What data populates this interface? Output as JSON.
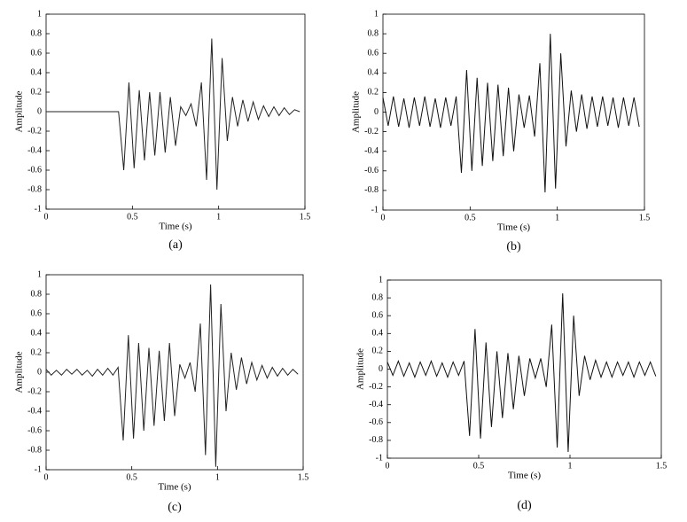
{
  "chart_data": [
    {
      "type": "line",
      "xlabel": "Time (s)",
      "ylabel": "Amplitude",
      "caption": "(a)",
      "color": "#222222",
      "xlim": [
        0,
        1.5
      ],
      "ylim": [
        -1,
        1
      ],
      "xticks": [
        0,
        0.5,
        1,
        1.5
      ],
      "yticks": [
        -1,
        -0.8,
        -0.6,
        -0.4,
        -0.2,
        0,
        0.2,
        0.4,
        0.6,
        0.8,
        1
      ],
      "x": [
        0,
        0.03,
        0.06,
        0.09,
        0.12,
        0.15,
        0.18,
        0.21,
        0.24,
        0.27,
        0.3,
        0.33,
        0.36,
        0.39,
        0.42,
        0.45,
        0.48,
        0.51,
        0.54,
        0.57,
        0.6,
        0.63,
        0.66,
        0.69,
        0.72,
        0.75,
        0.78,
        0.81,
        0.84,
        0.87,
        0.9,
        0.93,
        0.96,
        0.99,
        1.02,
        1.05,
        1.08,
        1.11,
        1.14,
        1.17,
        1.2,
        1.23,
        1.26,
        1.29,
        1.32,
        1.35,
        1.38,
        1.41,
        1.44,
        1.47
      ],
      "values": [
        0,
        0,
        0,
        0,
        0,
        0,
        0,
        0,
        0,
        0,
        0,
        0,
        0,
        0,
        0,
        -0.6,
        0.3,
        -0.58,
        0.22,
        -0.5,
        0.2,
        -0.45,
        0.2,
        -0.42,
        0.15,
        -0.35,
        0.05,
        -0.04,
        0.08,
        -0.15,
        0.3,
        -0.7,
        0.75,
        -0.8,
        0.55,
        -0.3,
        0.15,
        -0.15,
        0.12,
        -0.1,
        0.1,
        -0.08,
        0.06,
        -0.05,
        0.05,
        -0.04,
        0.04,
        -0.03,
        0.02,
        0
      ]
    },
    {
      "type": "line",
      "xlabel": "Time (s)",
      "ylabel": "Amplitude",
      "caption": "(b)",
      "color": "#111111",
      "xlim": [
        0,
        1.5
      ],
      "ylim": [
        -1,
        1
      ],
      "xticks": [
        0,
        0.5,
        1,
        1.5
      ],
      "yticks": [
        -1,
        -0.8,
        -0.6,
        -0.4,
        -0.2,
        0,
        0.2,
        0.4,
        0.6,
        0.8,
        1
      ],
      "x": [
        0,
        0.03,
        0.06,
        0.09,
        0.12,
        0.15,
        0.18,
        0.21,
        0.24,
        0.27,
        0.3,
        0.33,
        0.36,
        0.39,
        0.42,
        0.45,
        0.48,
        0.51,
        0.54,
        0.57,
        0.6,
        0.63,
        0.66,
        0.69,
        0.72,
        0.75,
        0.78,
        0.81,
        0.84,
        0.87,
        0.9,
        0.93,
        0.96,
        0.99,
        1.02,
        1.05,
        1.08,
        1.11,
        1.14,
        1.17,
        1.2,
        1.23,
        1.26,
        1.29,
        1.32,
        1.35,
        1.38,
        1.41,
        1.44,
        1.47
      ],
      "values": [
        0.15,
        -0.14,
        0.16,
        -0.15,
        0.14,
        -0.16,
        0.15,
        -0.14,
        0.16,
        -0.15,
        0.14,
        -0.16,
        0.15,
        -0.14,
        0.16,
        -0.62,
        0.43,
        -0.6,
        0.35,
        -0.55,
        0.3,
        -0.5,
        0.28,
        -0.45,
        0.25,
        -0.4,
        0.18,
        -0.16,
        0.17,
        -0.25,
        0.5,
        -0.82,
        0.8,
        -0.78,
        0.6,
        -0.35,
        0.22,
        -0.2,
        0.18,
        -0.17,
        0.16,
        -0.15,
        0.16,
        -0.14,
        0.15,
        -0.16,
        0.15,
        -0.14,
        0.15,
        -0.15
      ]
    },
    {
      "type": "line",
      "xlabel": "Time (s)",
      "ylabel": "Amplitude",
      "caption": "(c)",
      "color": "#222222",
      "xlim": [
        0,
        1.5
      ],
      "ylim": [
        -1,
        1
      ],
      "xticks": [
        0,
        0.5,
        1,
        1.5
      ],
      "yticks": [
        -1,
        -0.8,
        -0.6,
        -0.4,
        -0.2,
        0,
        0.2,
        0.4,
        0.6,
        0.8,
        1
      ],
      "x": [
        0,
        0.03,
        0.06,
        0.09,
        0.12,
        0.15,
        0.18,
        0.21,
        0.24,
        0.27,
        0.3,
        0.33,
        0.36,
        0.39,
        0.42,
        0.45,
        0.48,
        0.51,
        0.54,
        0.57,
        0.6,
        0.63,
        0.66,
        0.69,
        0.72,
        0.75,
        0.78,
        0.81,
        0.84,
        0.87,
        0.9,
        0.93,
        0.96,
        0.99,
        1.02,
        1.05,
        1.08,
        1.11,
        1.14,
        1.17,
        1.2,
        1.23,
        1.26,
        1.29,
        1.32,
        1.35,
        1.38,
        1.41,
        1.44,
        1.47
      ],
      "values": [
        0.03,
        -0.03,
        0.02,
        -0.03,
        0.03,
        -0.02,
        0.03,
        -0.03,
        0.02,
        -0.04,
        0.03,
        -0.03,
        0.04,
        -0.03,
        0.05,
        -0.7,
        0.38,
        -0.68,
        0.3,
        -0.6,
        0.25,
        -0.55,
        0.22,
        -0.5,
        0.3,
        -0.45,
        0.08,
        -0.06,
        0.1,
        -0.2,
        0.5,
        -0.85,
        0.9,
        -0.97,
        0.7,
        -0.4,
        0.2,
        -0.18,
        0.15,
        -0.12,
        0.1,
        -0.08,
        0.07,
        -0.06,
        0.05,
        -0.04,
        0.04,
        -0.03,
        0.03,
        -0.02
      ]
    },
    {
      "type": "line",
      "xlabel": "Time (s)",
      "ylabel": "Amplitude",
      "caption": "(d)",
      "color": "#111111",
      "xlim": [
        0,
        1.5
      ],
      "ylim": [
        -1,
        1
      ],
      "xticks": [
        0,
        0.5,
        1,
        1.5
      ],
      "yticks": [
        -1,
        -0.8,
        -0.6,
        -0.4,
        -0.2,
        0,
        0.2,
        0.4,
        0.6,
        0.8,
        1
      ],
      "x": [
        0,
        0.03,
        0.06,
        0.09,
        0.12,
        0.15,
        0.18,
        0.21,
        0.24,
        0.27,
        0.3,
        0.33,
        0.36,
        0.39,
        0.42,
        0.45,
        0.48,
        0.51,
        0.54,
        0.57,
        0.6,
        0.63,
        0.66,
        0.69,
        0.72,
        0.75,
        0.78,
        0.81,
        0.84,
        0.87,
        0.9,
        0.93,
        0.96,
        0.99,
        1.02,
        1.05,
        1.08,
        1.11,
        1.14,
        1.17,
        1.2,
        1.23,
        1.26,
        1.29,
        1.32,
        1.35,
        1.38,
        1.41,
        1.44,
        1.47
      ],
      "values": [
        0.08,
        -0.07,
        0.09,
        -0.08,
        0.07,
        -0.09,
        0.08,
        -0.07,
        0.09,
        -0.08,
        0.07,
        -0.09,
        0.08,
        -0.07,
        0.09,
        -0.75,
        0.45,
        -0.78,
        0.3,
        -0.65,
        0.2,
        -0.55,
        0.18,
        -0.45,
        0.15,
        -0.3,
        0.12,
        -0.1,
        0.12,
        -0.2,
        0.5,
        -0.88,
        0.85,
        -0.93,
        0.6,
        -0.3,
        0.15,
        -0.12,
        0.1,
        -0.09,
        0.08,
        -0.09,
        0.08,
        -0.07,
        0.08,
        -0.09,
        0.08,
        -0.07,
        0.08,
        -0.08
      ]
    }
  ]
}
